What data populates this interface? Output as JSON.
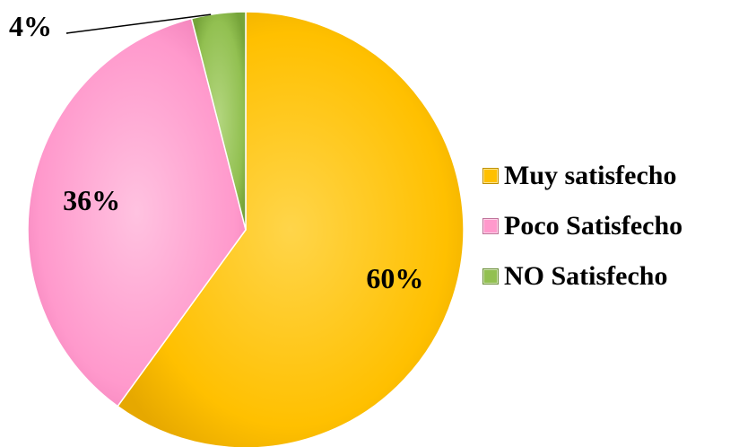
{
  "chart_data": {
    "type": "pie",
    "categories": [
      "Muy satisfecho",
      "Poco Satisfecho",
      "NO Satisfecho"
    ],
    "values": [
      60,
      36,
      4
    ],
    "data_labels": [
      "60%",
      "36%",
      "4%"
    ],
    "colors": [
      "#FFC000",
      "#FF99CC",
      "#92C051"
    ],
    "legend_position": "right",
    "start_angle": "top, clockwise"
  }
}
